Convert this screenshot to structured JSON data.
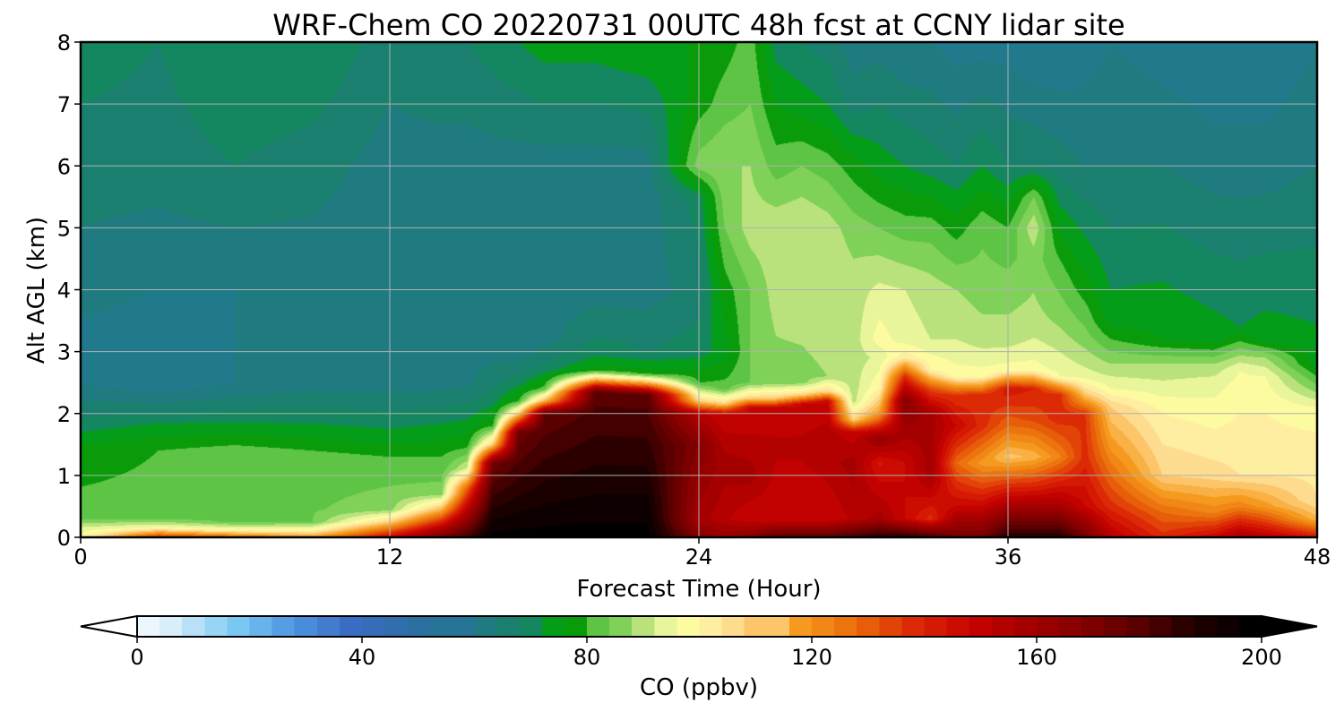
{
  "chart_data": {
    "type": "heatmap",
    "title": "WRF-Chem CO  20220731 00UTC 48h fcst at CCNY lidar site",
    "xlabel": "Forecast Time (Hour)",
    "ylabel": "Alt AGL (km)",
    "xlim": [
      0,
      48
    ],
    "ylim": [
      0,
      8
    ],
    "x_ticks": [
      0,
      12,
      24,
      36,
      48
    ],
    "y_ticks": [
      0,
      1,
      2,
      3,
      4,
      5,
      6,
      7,
      8
    ],
    "grid": true,
    "x_hours": [
      0,
      3,
      6,
      9,
      12,
      14,
      15,
      16,
      17,
      18,
      20,
      22,
      24,
      25,
      26,
      27,
      28,
      29,
      30,
      31,
      32,
      33,
      34,
      35,
      36,
      37,
      38,
      39,
      40,
      42,
      44,
      45,
      46,
      48
    ],
    "y_km": [
      0,
      0.1,
      0.2,
      0.4,
      0.7,
      1.0,
      1.3,
      1.6,
      1.9,
      2.2,
      2.5,
      2.8,
      3.2,
      3.6,
      4.0,
      4.5,
      5.0,
      5.5,
      6.0,
      6.5,
      7.0,
      7.5,
      8.0
    ],
    "profiles_ppbv": [
      [
        [
          0,
          100
        ],
        [
          0.15,
          95
        ],
        [
          0.3,
          85
        ],
        [
          1.5,
          78
        ],
        [
          1.8,
          72
        ],
        [
          2.5,
          62
        ],
        [
          3.5,
          62
        ],
        [
          5,
          66
        ],
        [
          7,
          70
        ],
        [
          8,
          72
        ]
      ],
      [
        [
          0,
          140
        ],
        [
          0.15,
          100
        ],
        [
          0.3,
          85
        ],
        [
          1.4,
          82
        ],
        [
          1.8,
          75
        ],
        [
          2.5,
          58
        ],
        [
          4,
          62
        ],
        [
          6,
          68
        ],
        [
          8,
          70
        ]
      ],
      [
        [
          0,
          130
        ],
        [
          0.12,
          100
        ],
        [
          0.25,
          85
        ],
        [
          1.4,
          84
        ],
        [
          1.8,
          75
        ],
        [
          2.5,
          62
        ],
        [
          4,
          62
        ],
        [
          6,
          70
        ],
        [
          8,
          74
        ]
      ],
      [
        [
          0,
          120
        ],
        [
          0.12,
          100
        ],
        [
          0.25,
          86
        ],
        [
          1.3,
          84
        ],
        [
          1.7,
          76
        ],
        [
          2.5,
          64
        ],
        [
          4,
          63
        ],
        [
          6,
          68
        ],
        [
          8,
          74
        ]
      ],
      [
        [
          0,
          150
        ],
        [
          0.25,
          110
        ],
        [
          0.45,
          88
        ],
        [
          1.2,
          84
        ],
        [
          1.6,
          76
        ],
        [
          2.5,
          64
        ],
        [
          4,
          63
        ],
        [
          6,
          64
        ],
        [
          8,
          68
        ]
      ],
      [
        [
          0,
          175
        ],
        [
          0.45,
          115
        ],
        [
          0.7,
          88
        ],
        [
          1.3,
          82
        ],
        [
          1.7,
          76
        ],
        [
          2.5,
          64
        ],
        [
          4,
          64
        ],
        [
          6,
          64
        ],
        [
          8,
          70
        ]
      ],
      [
        [
          0,
          185
        ],
        [
          0.8,
          130
        ],
        [
          1.1,
          95
        ],
        [
          1.5,
          80
        ],
        [
          1.9,
          74
        ],
        [
          2.5,
          65
        ],
        [
          4,
          64
        ],
        [
          6,
          64
        ],
        [
          8,
          70
        ]
      ],
      [
        [
          0,
          200
        ],
        [
          1.2,
          175
        ],
        [
          1.5,
          110
        ],
        [
          1.8,
          82
        ],
        [
          2.2,
          72
        ],
        [
          3,
          64
        ],
        [
          6,
          64
        ],
        [
          8,
          72
        ]
      ],
      [
        [
          0,
          200
        ],
        [
          1.7,
          175
        ],
        [
          2.0,
          110
        ],
        [
          2.2,
          82
        ],
        [
          2.5,
          72
        ],
        [
          3,
          64
        ],
        [
          6,
          64
        ],
        [
          8,
          74
        ]
      ],
      [
        [
          0,
          200
        ],
        [
          2.0,
          178
        ],
        [
          2.2,
          115
        ],
        [
          2.4,
          84
        ],
        [
          2.7,
          72
        ],
        [
          3.2,
          64
        ],
        [
          6,
          64
        ],
        [
          8,
          76
        ]
      ],
      [
        [
          0,
          200
        ],
        [
          2.35,
          180
        ],
        [
          2.55,
          115
        ],
        [
          2.7,
          80
        ],
        [
          3,
          72
        ],
        [
          4,
          64
        ],
        [
          6,
          64
        ],
        [
          8,
          76
        ]
      ],
      [
        [
          0,
          200
        ],
        [
          2.3,
          180
        ],
        [
          2.5,
          115
        ],
        [
          2.65,
          80
        ],
        [
          3,
          70
        ],
        [
          4,
          64
        ],
        [
          6,
          64
        ],
        [
          8,
          78
        ]
      ],
      [
        [
          0,
          170
        ],
        [
          0.3,
          160
        ],
        [
          1.5,
          170
        ],
        [
          2.0,
          155
        ],
        [
          2.2,
          110
        ],
        [
          2.5,
          82
        ],
        [
          3,
          72
        ],
        [
          4,
          68
        ],
        [
          5.5,
          72
        ],
        [
          6,
          88
        ],
        [
          7,
          80
        ],
        [
          8,
          78
        ]
      ],
      [
        [
          0,
          165
        ],
        [
          0.3,
          155
        ],
        [
          1.2,
          160
        ],
        [
          2.0,
          150
        ],
        [
          2.15,
          110
        ],
        [
          2.4,
          84
        ],
        [
          3,
          76
        ],
        [
          4,
          80
        ],
        [
          5,
          86
        ],
        [
          6,
          90
        ],
        [
          7,
          84
        ],
        [
          8,
          80
        ]
      ],
      [
        [
          0,
          170
        ],
        [
          0.3,
          150
        ],
        [
          1.0,
          160
        ],
        [
          2.1,
          150
        ],
        [
          2.25,
          110
        ],
        [
          2.5,
          86
        ],
        [
          4,
          86
        ],
        [
          5,
          92
        ],
        [
          6,
          90
        ],
        [
          7,
          86
        ],
        [
          8,
          84
        ]
      ],
      [
        [
          0,
          180
        ],
        [
          0.3,
          150
        ],
        [
          1.5,
          155
        ],
        [
          2.1,
          150
        ],
        [
          2.25,
          110
        ],
        [
          2.5,
          88
        ],
        [
          4,
          92
        ],
        [
          5,
          93
        ],
        [
          6,
          84
        ],
        [
          7,
          78
        ],
        [
          8,
          72
        ]
      ],
      [
        [
          0,
          180
        ],
        [
          0.3,
          150
        ],
        [
          1.5,
          155
        ],
        [
          2.15,
          150
        ],
        [
          2.3,
          110
        ],
        [
          2.5,
          88
        ],
        [
          4,
          93
        ],
        [
          5,
          94
        ],
        [
          6,
          86
        ],
        [
          7,
          76
        ],
        [
          8,
          70
        ]
      ],
      [
        [
          0,
          180
        ],
        [
          0.3,
          150
        ],
        [
          1.5,
          158
        ],
        [
          2.2,
          150
        ],
        [
          2.35,
          110
        ],
        [
          2.6,
          90
        ],
        [
          4,
          94
        ],
        [
          5,
          92
        ],
        [
          6,
          84
        ],
        [
          7,
          74
        ],
        [
          8,
          68
        ]
      ],
      [
        [
          0,
          185
        ],
        [
          0.3,
          155
        ],
        [
          1.2,
          160
        ],
        [
          1.7,
          150
        ],
        [
          1.9,
          110
        ],
        [
          2.2,
          92
        ],
        [
          4,
          92
        ],
        [
          5,
          88
        ],
        [
          6,
          80
        ],
        [
          7,
          68
        ],
        [
          8,
          64
        ]
      ],
      [
        [
          0,
          190
        ],
        [
          0.3,
          160
        ],
        [
          1.2,
          145
        ],
        [
          1.6,
          165
        ],
        [
          2.0,
          120
        ],
        [
          2.4,
          102
        ],
        [
          2.9,
          95
        ],
        [
          3.2,
          100
        ],
        [
          4,
          95
        ],
        [
          5,
          86
        ],
        [
          6,
          76
        ],
        [
          8,
          64
        ]
      ],
      [
        [
          0,
          190
        ],
        [
          0.3,
          150
        ],
        [
          1.2,
          150
        ],
        [
          2.2,
          170
        ],
        [
          2.6,
          140
        ],
        [
          2.9,
          105
        ],
        [
          3.2,
          96
        ],
        [
          4,
          94
        ],
        [
          5,
          84
        ],
        [
          6,
          74
        ],
        [
          8,
          62
        ]
      ],
      [
        [
          0,
          185
        ],
        [
          0.3,
          140
        ],
        [
          1.0,
          160
        ],
        [
          2.0,
          160
        ],
        [
          2.4,
          135
        ],
        [
          2.7,
          102
        ],
        [
          3.2,
          94
        ],
        [
          4,
          92
        ],
        [
          5,
          84
        ],
        [
          6,
          72
        ],
        [
          8,
          62
        ]
      ],
      [
        [
          0,
          175
        ],
        [
          0.5,
          150
        ],
        [
          1.2,
          130
        ],
        [
          1.8,
          150
        ],
        [
          2.3,
          138
        ],
        [
          2.6,
          100
        ],
        [
          3.2,
          94
        ],
        [
          4,
          90
        ],
        [
          5,
          80
        ],
        [
          6,
          70
        ],
        [
          8,
          60
        ]
      ],
      [
        [
          0,
          175
        ],
        [
          0.5,
          150
        ],
        [
          1.2,
          120
        ],
        [
          1.8,
          140
        ],
        [
          2.3,
          140
        ],
        [
          2.6,
          100
        ],
        [
          3.2,
          92
        ],
        [
          4,
          88
        ],
        [
          5,
          85
        ],
        [
          6,
          74
        ],
        [
          8,
          60
        ]
      ],
      [
        [
          0,
          190
        ],
        [
          0.5,
          160
        ],
        [
          1.3,
          112
        ],
        [
          1.8,
          130
        ],
        [
          2.4,
          145
        ],
        [
          2.7,
          100
        ],
        [
          3.2,
          92
        ],
        [
          4,
          88
        ],
        [
          5,
          82
        ],
        [
          6,
          70
        ],
        [
          8,
          60
        ]
      ],
      [
        [
          0,
          190
        ],
        [
          0.5,
          160
        ],
        [
          1.3,
          115
        ],
        [
          1.9,
          135
        ],
        [
          2.4,
          142
        ],
        [
          2.7,
          100
        ],
        [
          3.4,
          92
        ],
        [
          4.5,
          88
        ],
        [
          5,
          93
        ],
        [
          5.5,
          86
        ],
        [
          6,
          70
        ],
        [
          8,
          58
        ]
      ],
      [
        [
          0,
          190
        ],
        [
          0.5,
          160
        ],
        [
          1.3,
          125
        ],
        [
          1.9,
          140
        ],
        [
          2.3,
          140
        ],
        [
          2.6,
          98
        ],
        [
          3.4,
          90
        ],
        [
          4.5,
          82
        ],
        [
          6,
          68
        ],
        [
          8,
          58
        ]
      ],
      [
        [
          0,
          175
        ],
        [
          0.5,
          150
        ],
        [
          1.3,
          140
        ],
        [
          2.0,
          138
        ],
        [
          2.3,
          112
        ],
        [
          2.6,
          96
        ],
        [
          3.2,
          88
        ],
        [
          4,
          80
        ],
        [
          6,
          66
        ],
        [
          8,
          60
        ]
      ],
      [
        [
          0,
          155
        ],
        [
          0.5,
          140
        ],
        [
          1.5,
          120
        ],
        [
          2.1,
          110
        ],
        [
          2.4,
          98
        ],
        [
          3,
          86
        ],
        [
          3.5,
          76
        ],
        [
          6,
          66
        ],
        [
          8,
          62
        ]
      ],
      [
        [
          0,
          140
        ],
        [
          0.4,
          130
        ],
        [
          1.0,
          110
        ],
        [
          2.0,
          102
        ],
        [
          2.4,
          96
        ],
        [
          2.8,
          90
        ],
        [
          3.2,
          78
        ],
        [
          6,
          66
        ],
        [
          8,
          60
        ]
      ],
      [
        [
          0,
          150
        ],
        [
          0.4,
          125
        ],
        [
          1.0,
          108
        ],
        [
          2.0,
          100
        ],
        [
          2.5,
          96
        ],
        [
          2.8,
          90
        ],
        [
          3.2,
          76
        ],
        [
          6,
          64
        ],
        [
          8,
          58
        ]
      ],
      [
        [
          0,
          160
        ],
        [
          0.5,
          125
        ],
        [
          1.0,
          106
        ],
        [
          2.0,
          102
        ],
        [
          2.7,
          98
        ],
        [
          3.0,
          88
        ],
        [
          3.4,
          74
        ],
        [
          6,
          64
        ],
        [
          8,
          58
        ]
      ],
      [
        [
          0,
          155
        ],
        [
          0.5,
          120
        ],
        [
          1.0,
          106
        ],
        [
          2.0,
          102
        ],
        [
          2.6,
          98
        ],
        [
          2.9,
          90
        ],
        [
          3.2,
          76
        ],
        [
          6,
          64
        ],
        [
          8,
          58
        ]
      ],
      [
        [
          0,
          145
        ],
        [
          0.3,
          115
        ],
        [
          0.6,
          106
        ],
        [
          1.5,
          104
        ],
        [
          2.1,
          98
        ],
        [
          2.4,
          88
        ],
        [
          2.8,
          76
        ],
        [
          6,
          66
        ],
        [
          8,
          62
        ]
      ]
    ],
    "colorbar": {
      "label": "CO  (ppbv)",
      "min": 0,
      "max": 200,
      "ticks": [
        0,
        40,
        80,
        120,
        160,
        200
      ],
      "extend": "both",
      "stops": [
        [
          0,
          "#ffffff"
        ],
        [
          8,
          "#d8eefb"
        ],
        [
          20,
          "#78c8f2"
        ],
        [
          30,
          "#4d94e0"
        ],
        [
          40,
          "#3a6cc4"
        ],
        [
          50,
          "#2f6ea8"
        ],
        [
          60,
          "#207a8c"
        ],
        [
          66,
          "#1f7b78"
        ],
        [
          72,
          "#148760"
        ],
        [
          76,
          "#049d1a"
        ],
        [
          80,
          "#0a9b0a"
        ],
        [
          84,
          "#5dc445"
        ],
        [
          88,
          "#7fd158"
        ],
        [
          92,
          "#b9e27c"
        ],
        [
          96,
          "#e8f59a"
        ],
        [
          100,
          "#fdfba0"
        ],
        [
          106,
          "#fee7a2"
        ],
        [
          112,
          "#fdc569"
        ],
        [
          120,
          "#f59a1e"
        ],
        [
          130,
          "#ea6a0a"
        ],
        [
          140,
          "#dd2a06"
        ],
        [
          150,
          "#c80300"
        ],
        [
          160,
          "#a50000"
        ],
        [
          170,
          "#850000"
        ],
        [
          180,
          "#5a0000"
        ],
        [
          190,
          "#220000"
        ],
        [
          200,
          "#000000"
        ]
      ]
    }
  }
}
